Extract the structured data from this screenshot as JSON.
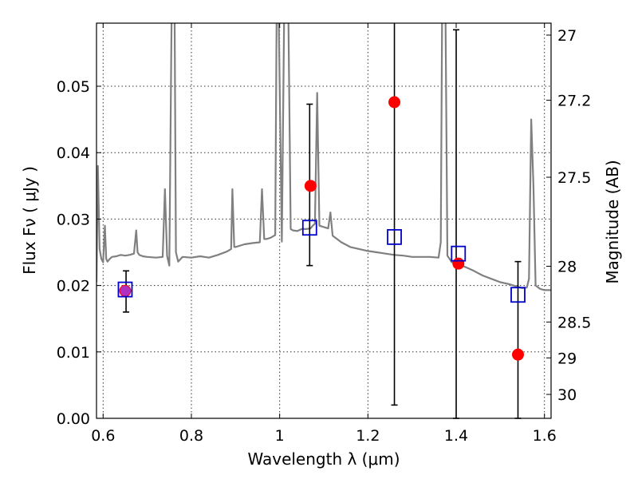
{
  "chart_data": {
    "type": "scatter",
    "title": "",
    "xlabel": "Wavelength  λ (μm)",
    "ylabel": "Flux  Fν  ( μJy )",
    "ylabel_right": "Magnitude (AB)",
    "xlim": [
      0.585,
      1.615
    ],
    "ylim": [
      0.0,
      0.0595
    ],
    "grid": true,
    "x_ticks": [
      0.6,
      0.8,
      1.0,
      1.2,
      1.4,
      1.6
    ],
    "x_tick_labels": [
      "0.6",
      "0.8",
      "1",
      "1.2",
      "1.4",
      "1.6"
    ],
    "y_ticks": [
      0.0,
      0.01,
      0.02,
      0.03,
      0.04,
      0.05
    ],
    "y_tick_labels": [
      "0.00",
      "0.01",
      "0.02",
      "0.03",
      "0.04",
      "0.05"
    ],
    "right_ticks": [
      {
        "label": "27",
        "flux": 0.0577
      },
      {
        "label": "27.2",
        "flux": 0.0479
      },
      {
        "label": "27.5",
        "flux": 0.0363
      },
      {
        "label": "28",
        "flux": 0.0229
      },
      {
        "label": "28.5",
        "flux": 0.0145
      },
      {
        "label": "29",
        "flux": 0.0091
      },
      {
        "label": "30",
        "flux": 0.0036
      }
    ],
    "series": [
      {
        "kind": "line",
        "color": "#808080",
        "x": [
          0.585,
          0.588,
          0.592,
          0.596,
          0.6,
          0.604,
          0.607,
          0.61,
          0.615,
          0.62,
          0.63,
          0.64,
          0.65,
          0.66,
          0.67,
          0.675,
          0.678,
          0.682,
          0.69,
          0.7,
          0.72,
          0.735,
          0.74,
          0.745,
          0.75,
          0.755,
          0.758,
          0.762,
          0.765,
          0.77,
          0.78,
          0.8,
          0.82,
          0.84,
          0.86,
          0.88,
          0.89,
          0.893,
          0.897,
          0.9,
          0.92,
          0.94,
          0.955,
          0.96,
          0.965,
          0.97,
          0.98,
          0.99,
          0.993,
          0.998,
          1.005,
          1.01,
          1.015,
          1.02,
          1.025,
          1.03,
          1.04,
          1.05,
          1.06,
          1.07,
          1.075,
          1.08,
          1.085,
          1.09,
          1.1,
          1.11,
          1.115,
          1.12,
          1.14,
          1.16,
          1.18,
          1.2,
          1.22,
          1.24,
          1.26,
          1.28,
          1.3,
          1.32,
          1.34,
          1.36,
          1.365,
          1.368,
          1.372,
          1.376,
          1.38,
          1.39,
          1.4,
          1.42,
          1.44,
          1.46,
          1.48,
          1.5,
          1.52,
          1.54,
          1.55,
          1.56,
          1.565,
          1.57,
          1.575,
          1.58,
          1.59,
          1.6,
          1.615
        ],
        "y": [
          0.0205,
          0.038,
          0.0255,
          0.024,
          0.0235,
          0.029,
          0.024,
          0.0236,
          0.024,
          0.0243,
          0.0244,
          0.0246,
          0.0245,
          0.0246,
          0.0248,
          0.0283,
          0.025,
          0.0246,
          0.0244,
          0.0243,
          0.0242,
          0.0243,
          0.0345,
          0.0245,
          0.023,
          0.0596,
          0.0596,
          0.0596,
          0.025,
          0.0236,
          0.0243,
          0.0242,
          0.0244,
          0.0242,
          0.0246,
          0.0251,
          0.0255,
          0.0345,
          0.0258,
          0.0258,
          0.0262,
          0.0264,
          0.0265,
          0.0345,
          0.027,
          0.027,
          0.0272,
          0.0276,
          0.0596,
          0.0596,
          0.0266,
          0.0596,
          0.0596,
          0.0596,
          0.0285,
          0.0283,
          0.0282,
          0.0285,
          0.0285,
          0.0286,
          0.029,
          0.0293,
          0.049,
          0.029,
          0.0288,
          0.0286,
          0.031,
          0.0275,
          0.0265,
          0.0258,
          0.0255,
          0.0252,
          0.025,
          0.0248,
          0.0246,
          0.0245,
          0.0243,
          0.0243,
          0.0243,
          0.0242,
          0.0265,
          0.0596,
          0.0596,
          0.0596,
          0.0245,
          0.0235,
          0.0233,
          0.0228,
          0.0222,
          0.0215,
          0.021,
          0.0205,
          0.0202,
          0.0198,
          0.0196,
          0.0197,
          0.021,
          0.045,
          0.035,
          0.02,
          0.0195,
          0.0193,
          0.0193
        ]
      },
      {
        "kind": "markers",
        "marker": "open-square",
        "color": "#0000cc",
        "x": [
          0.65,
          1.068,
          1.26,
          1.405,
          1.54
        ],
        "y": [
          0.0194,
          0.0287,
          0.0273,
          0.0248,
          0.0186
        ]
      },
      {
        "kind": "markers",
        "marker": "filled-circle",
        "color": "#ff0000",
        "x": [
          0.65,
          1.07,
          1.26,
          1.405,
          1.54
        ],
        "y": [
          0.0192,
          0.035,
          0.0476,
          0.0233,
          0.0096
        ]
      },
      {
        "kind": "errorbars",
        "color": "#000000",
        "x": [
          0.652,
          1.068,
          1.26,
          1.4,
          1.54
        ],
        "y_low": [
          0.016,
          0.023,
          0.002,
          0.0,
          0.0
        ],
        "y_high": [
          0.0222,
          0.0473,
          0.0596,
          0.0585,
          0.0236
        ]
      }
    ],
    "highlight_marker": {
      "x": 0.65,
      "y": 0.0192,
      "color": "#b030c0"
    }
  }
}
